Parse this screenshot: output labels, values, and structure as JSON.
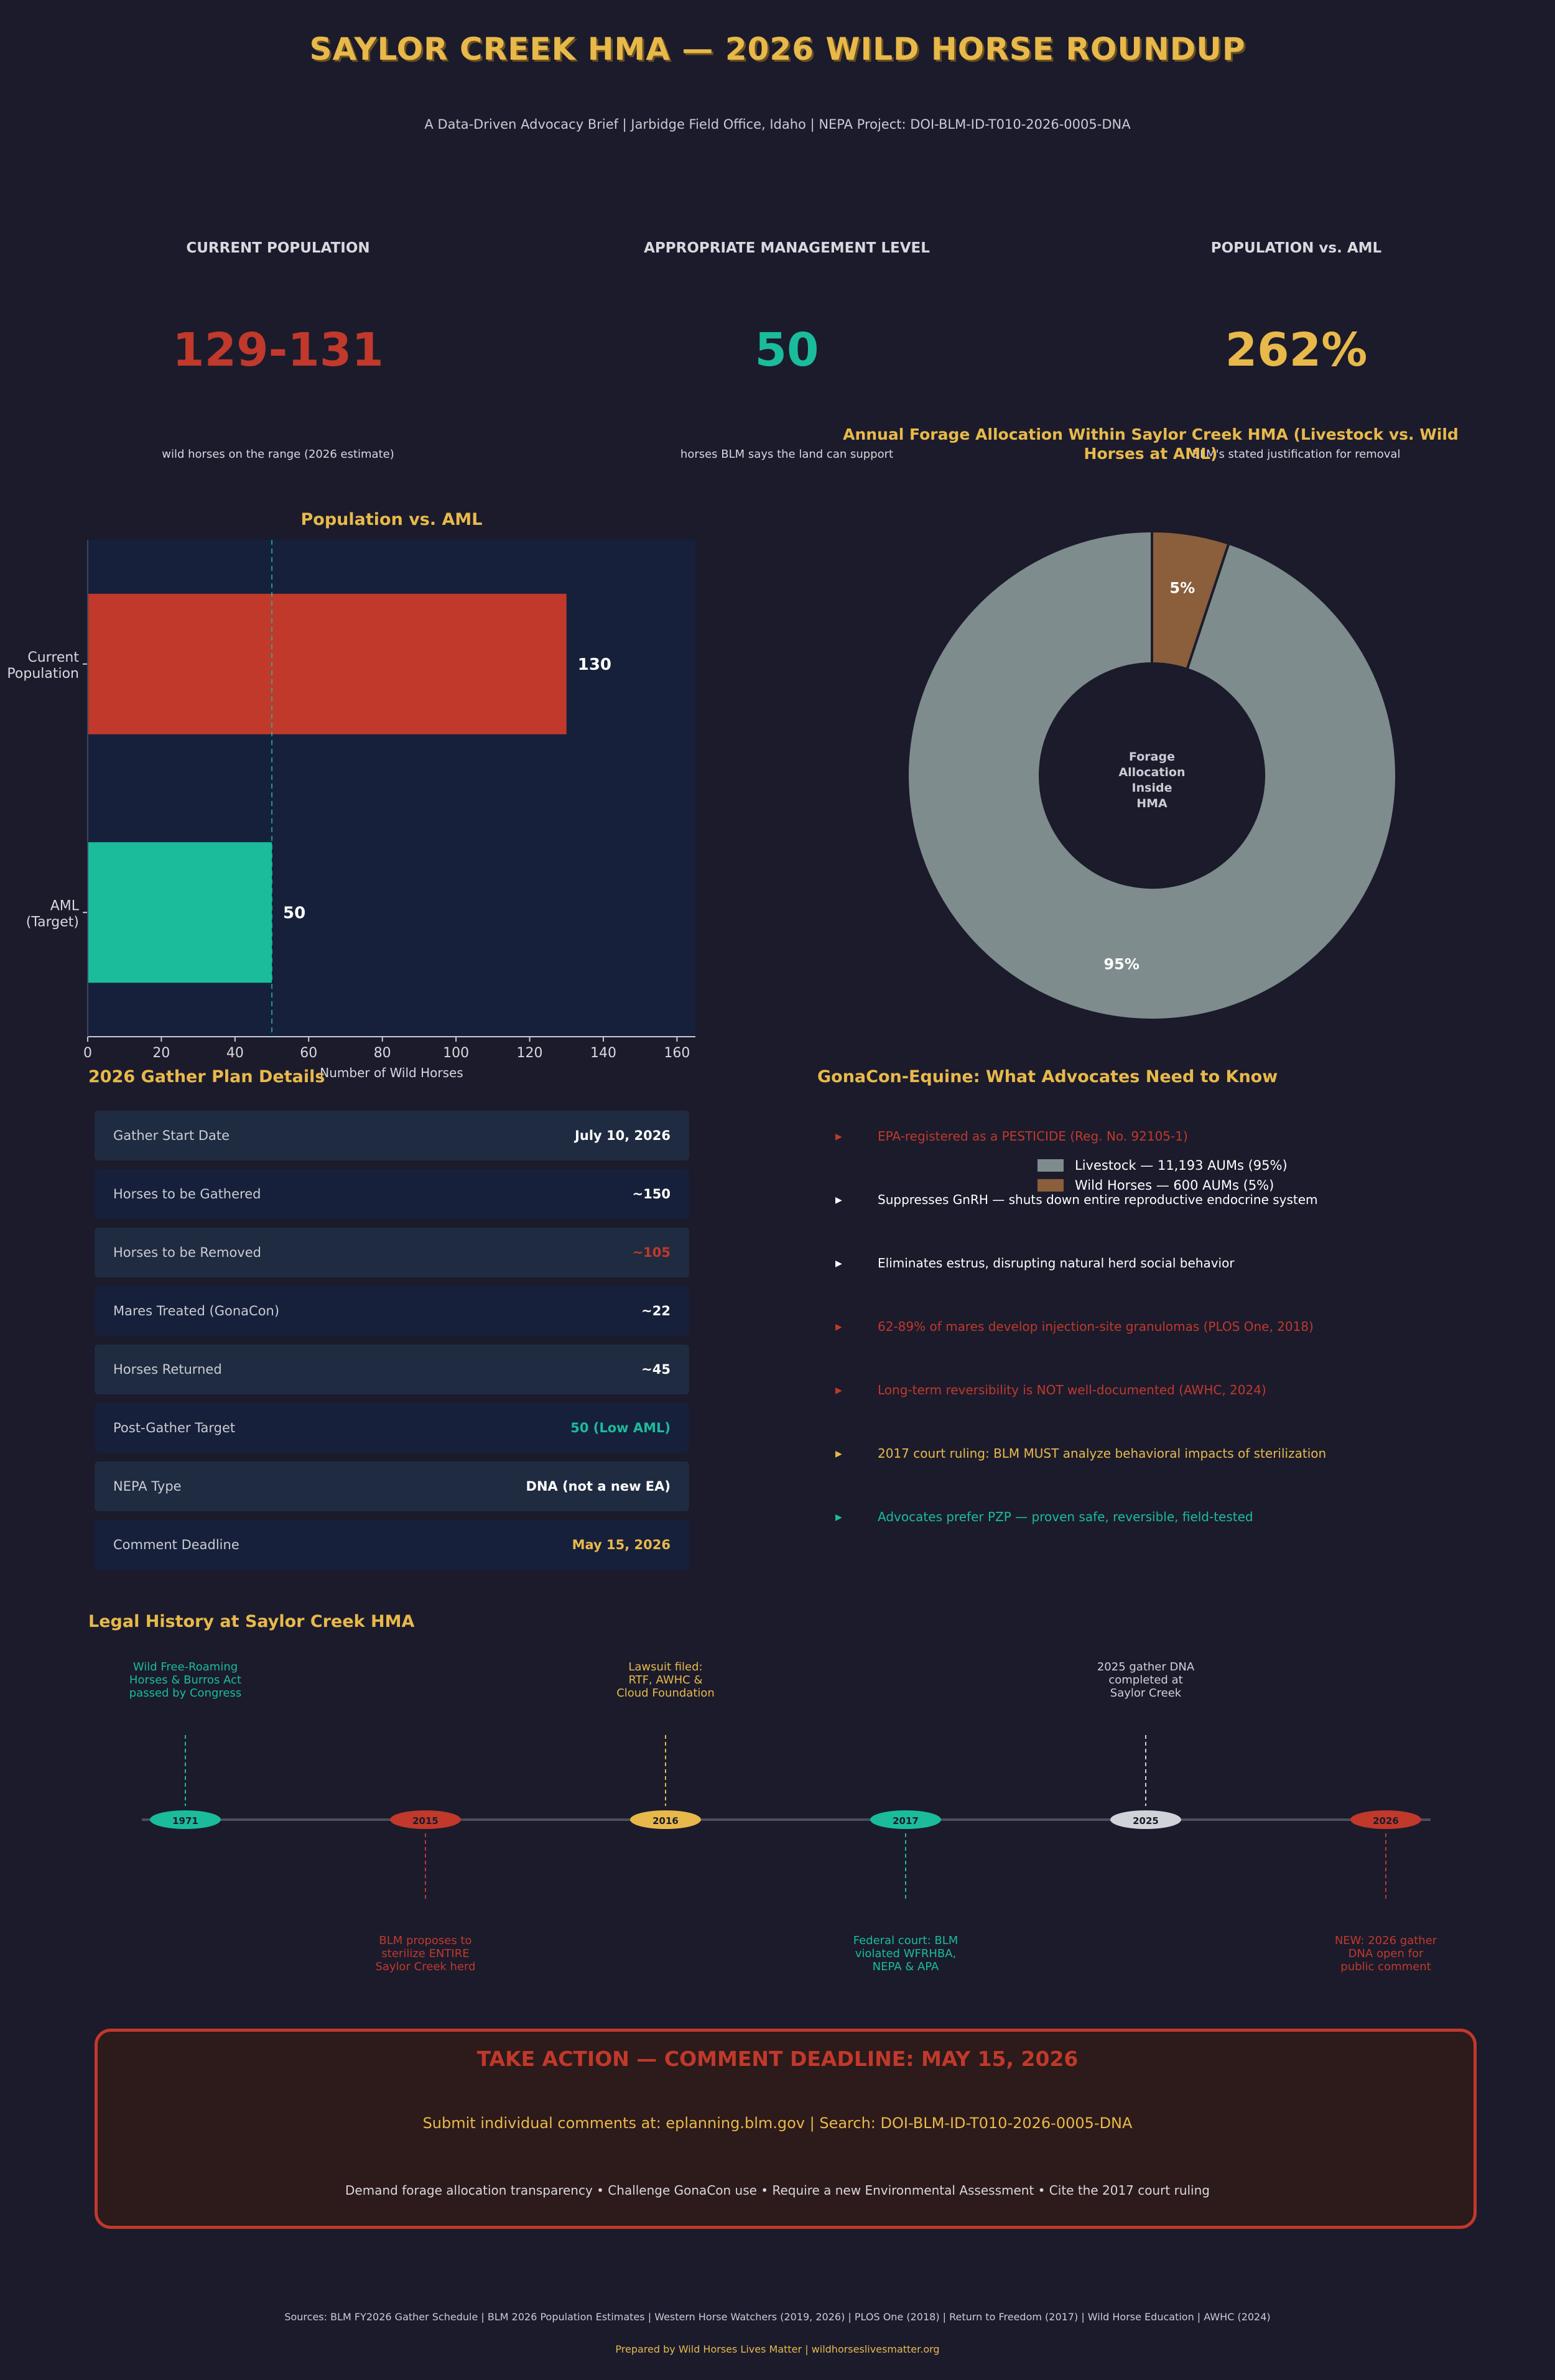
{
  "header": {
    "title": "SAYLOR CREEK HMA — 2026 WILD HORSE ROUNDUP",
    "subtitle": "A Data-Driven Advocacy Brief  |  Jarbidge Field Office, Idaho  |  NEPA Project: DOI-BLM-ID-T010-2026-0005-DNA"
  },
  "kpis": [
    {
      "label": "CURRENT POPULATION",
      "value": "129-131",
      "sub": "wild horses on the range (2026 estimate)",
      "color": "#c0392b"
    },
    {
      "label": "APPROPRIATE MANAGEMENT LEVEL",
      "value": "50",
      "sub": "horses BLM says the land can support",
      "color": "#1abc9c"
    },
    {
      "label": "POPULATION vs. AML",
      "value": "262%",
      "sub": "BLM's stated justification for removal",
      "color": "#e8b94a"
    }
  ],
  "chart_data": [
    {
      "type": "bar",
      "orientation": "horizontal",
      "title": "Population vs. AML",
      "categories": [
        "Current Population",
        "AML (Target)"
      ],
      "values": [
        130,
        50
      ],
      "data_labels": [
        "130",
        "50"
      ],
      "colors": [
        "#c0392b",
        "#1abc9c"
      ],
      "xlabel": "Number of Wild Horses",
      "ylabel": "",
      "xlim": [
        0,
        165
      ],
      "xticks": [
        0,
        20,
        40,
        60,
        80,
        100,
        120,
        140,
        160
      ],
      "reference_line": {
        "value": 50,
        "style": "dashed",
        "color": "#1abc9c"
      },
      "grid": false
    },
    {
      "type": "pie",
      "donut": true,
      "title": "Annual Forage Allocation Within Saylor Creek HMA (Livestock vs. Wild Horses at AML)",
      "center_label": "Forage Allocation Inside HMA",
      "slices": [
        {
          "name": "Wild Horses — 600 AUMs (5%)",
          "value": 600,
          "label": "5%",
          "color": "#8b5e3c"
        },
        {
          "name": "Livestock — 11,193 AUMs (95%)",
          "value": 11193,
          "label": "95%",
          "color": "#7f8c8d"
        }
      ],
      "legend": [
        "Livestock — 11,193 AUMs (95%)",
        "Wild Horses — 600 AUMs (5%)"
      ],
      "legend_position": "lower-right"
    }
  ],
  "gather": {
    "title": "2026 Gather Plan Details",
    "rows": [
      {
        "label": "Gather Start Date",
        "value": "July 10, 2026",
        "color": "#ffffff"
      },
      {
        "label": "Horses to be Gathered",
        "value": "~150",
        "color": "#ffffff"
      },
      {
        "label": "Horses to be Removed",
        "value": "~105",
        "color": "#c0392b"
      },
      {
        "label": "Mares Treated (GonaCon)",
        "value": "~22",
        "color": "#ffffff"
      },
      {
        "label": "Horses Returned",
        "value": "~45",
        "color": "#ffffff"
      },
      {
        "label": "Post-Gather Target",
        "value": "50 (Low AML)",
        "color": "#1abc9c"
      },
      {
        "label": "NEPA Type",
        "value": "DNA (not a new EA)",
        "color": "#ffffff"
      },
      {
        "label": "Comment Deadline",
        "value": "May 15, 2026",
        "color": "#e8b94a"
      }
    ]
  },
  "gonacon": {
    "title": "GonaCon-Equine: What Advocates Need to Know",
    "items": [
      {
        "text": "EPA-registered as a PESTICIDE (Reg. No. 92105-1)",
        "color": "#c0392b",
        "marker": "▶"
      },
      {
        "text": "Suppresses GnRH — shuts down entire reproductive endocrine system",
        "color": "#ffffff",
        "marker": "▶"
      },
      {
        "text": "Eliminates estrus, disrupting natural herd social behavior",
        "color": "#ffffff",
        "marker": "▶"
      },
      {
        "text": "62-89% of mares develop injection-site granulomas (PLOS One, 2018)",
        "color": "#c0392b",
        "marker": "▶"
      },
      {
        "text": "Long-term reversibility is NOT well-documented (AWHC, 2024)",
        "color": "#c0392b",
        "marker": "▶"
      },
      {
        "text": "2017 court ruling: BLM MUST analyze behavioral impacts of sterilization",
        "color": "#e8b94a",
        "marker": "▶"
      },
      {
        "text": "Advocates prefer PZP — proven safe, reversible, field-tested",
        "color": "#1abc9c",
        "marker": "▶"
      }
    ]
  },
  "timeline": {
    "title": "Legal History at Saylor Creek HMA",
    "events": [
      {
        "year": "1971",
        "lines": [
          "Wild Free-Roaming",
          "Horses & Burros Act",
          "passed by Congress"
        ],
        "position": "above",
        "color": "#1abc9c"
      },
      {
        "year": "2015",
        "lines": [
          "BLM proposes to",
          "sterilize ENTIRE",
          "Saylor Creek herd"
        ],
        "position": "below",
        "color": "#c0392b"
      },
      {
        "year": "2016",
        "lines": [
          "Lawsuit filed:",
          "RTF, AWHC &",
          "Cloud Foundation"
        ],
        "position": "above",
        "color": "#e8b94a"
      },
      {
        "year": "2017",
        "lines": [
          "Federal court: BLM",
          "violated WFRHBA,",
          "NEPA & APA"
        ],
        "position": "below",
        "color": "#1abc9c"
      },
      {
        "year": "2025",
        "lines": [
          "2025 gather DNA",
          "completed at",
          "Saylor Creek"
        ],
        "position": "above",
        "color": "#d0d3d8"
      },
      {
        "year": "2026",
        "lines": [
          "NEW: 2026 gather",
          "DNA open for",
          "public comment"
        ],
        "position": "below",
        "color": "#c0392b"
      }
    ]
  },
  "cta": {
    "title": "TAKE ACTION — COMMENT DEADLINE: MAY 15, 2026",
    "sub": "Submit individual comments at: eplanning.blm.gov  |  Search: DOI-BLM-ID-T010-2026-0005-DNA",
    "list": "Demand forage allocation transparency  •  Challenge GonaCon use  •  Require a new Environmental Assessment  •  Cite the 2017 court ruling"
  },
  "footer": {
    "sources": "Sources: BLM FY2026 Gather Schedule | BLM 2026 Population Estimates | Western Horse Watchers (2019, 2026) | PLOS One (2018) | Return to Freedom (2017) | Wild Horse Education | AWHC (2024)",
    "prepared": "Prepared by Wild Horses Lives Matter  |  wildhorseslivesmatter.org"
  }
}
